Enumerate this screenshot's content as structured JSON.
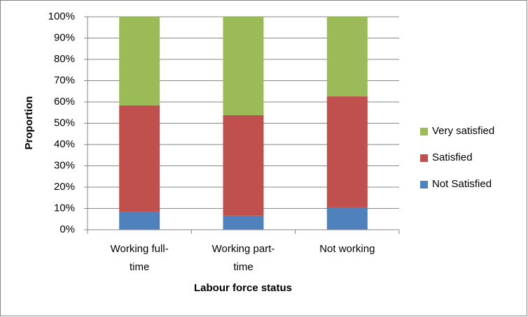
{
  "chart_data": {
    "type": "stacked_bar",
    "x_label": "Labour force status",
    "y_label": "Proportion",
    "categories": [
      "Working full-time",
      "Working part-time",
      "Not working"
    ],
    "series": [
      {
        "name": "Not Satisfied",
        "color": "#4f81bd",
        "values": [
          8.5,
          6.6,
          10.5
        ]
      },
      {
        "name": "Satisfied",
        "color": "#c0504d",
        "values": [
          49.9,
          47.2,
          52.1
        ]
      },
      {
        "name": "Very satisfied",
        "color": "#9bbb59",
        "values": [
          41.6,
          46.2,
          37.4
        ]
      }
    ],
    "ylim": [
      0,
      100
    ],
    "yticks": [
      {
        "value": 0,
        "label": "0%"
      },
      {
        "value": 10,
        "label": "10%"
      },
      {
        "value": 20,
        "label": "20%"
      },
      {
        "value": 30,
        "label": "30%"
      },
      {
        "value": 40,
        "label": "40%"
      },
      {
        "value": 50,
        "label": "50%"
      },
      {
        "value": 60,
        "label": "60%"
      },
      {
        "value": 70,
        "label": "70%"
      },
      {
        "value": 80,
        "label": "80%"
      },
      {
        "value": 90,
        "label": "90%"
      },
      {
        "value": 100,
        "label": "100%"
      }
    ],
    "grid": true,
    "legend": "right"
  }
}
